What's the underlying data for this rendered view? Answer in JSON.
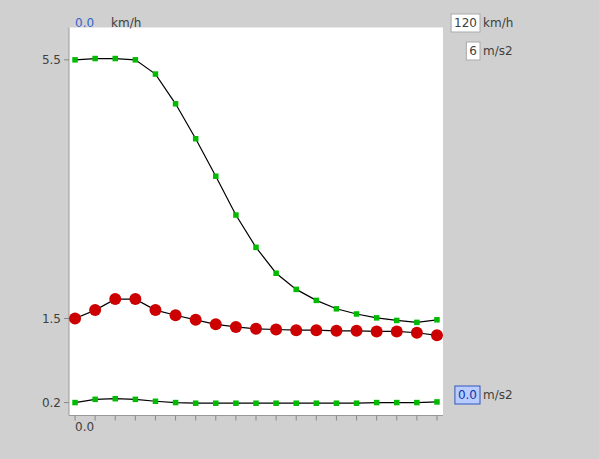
{
  "chart_data": {
    "type": "line",
    "x": [
      0,
      1,
      2,
      3,
      4,
      5,
      6,
      7,
      8,
      9,
      10,
      11,
      12,
      13,
      14,
      15,
      16,
      17,
      18
    ],
    "color": "#000000",
    "series": [
      {
        "color": "#00bb00",
        "marker": "square",
        "values": [
          5.5,
          5.52,
          5.52,
          5.5,
          5.28,
          4.82,
          4.28,
          3.7,
          3.1,
          2.6,
          2.2,
          1.95,
          1.78,
          1.65,
          1.57,
          1.51,
          1.47,
          1.44,
          1.48
        ]
      },
      {
        "color": "#cc0000",
        "marker": "circle",
        "values": [
          1.5,
          1.63,
          1.8,
          1.8,
          1.63,
          1.55,
          1.48,
          1.41,
          1.37,
          1.34,
          1.33,
          1.32,
          1.32,
          1.31,
          1.31,
          1.3,
          1.3,
          1.28,
          1.24
        ]
      },
      {
        "color": "#00bb00",
        "marker": "square",
        "values": [
          0.2,
          0.25,
          0.26,
          0.25,
          0.22,
          0.2,
          0.19,
          0.19,
          0.19,
          0.19,
          0.19,
          0.19,
          0.19,
          0.19,
          0.19,
          0.2,
          0.2,
          0.2,
          0.21
        ]
      }
    ],
    "xlim": [
      -0.3,
      18.3
    ],
    "xticks": [
      0,
      1,
      2,
      3,
      4,
      5,
      6,
      7,
      8,
      9,
      10,
      11,
      12,
      13,
      14,
      15,
      16,
      17,
      18
    ],
    "ylim": [
      0.0,
      6.0
    ],
    "yticks": [
      0.2,
      1.5,
      5.5
    ],
    "tick_labels": "y",
    "grid": false,
    "annotations": [
      "0.0",
      "km/h",
      "0.0",
      "120",
      "km/h",
      "6",
      "m/s2",
      "0.0",
      "m/s2"
    ]
  }
}
